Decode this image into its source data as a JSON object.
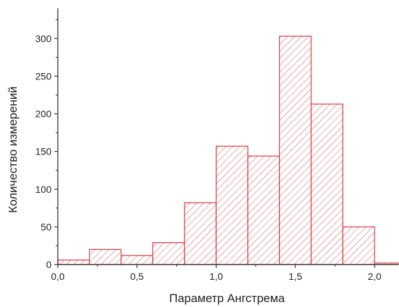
{
  "chart_data": {
    "type": "bar",
    "title": "",
    "xlabel": "Параметр Ангстрема",
    "ylabel": "Количество измерений",
    "xlim": [
      0.0,
      2.15
    ],
    "ylim": [
      0,
      340
    ],
    "bin_width": 0.2,
    "bins": [
      {
        "x0": 0.0,
        "x1": 0.2,
        "value": 6
      },
      {
        "x0": 0.2,
        "x1": 0.4,
        "value": 20
      },
      {
        "x0": 0.4,
        "x1": 0.6,
        "value": 12
      },
      {
        "x0": 0.6,
        "x1": 0.8,
        "value": 29
      },
      {
        "x0": 0.8,
        "x1": 1.0,
        "value": 82
      },
      {
        "x0": 1.0,
        "x1": 1.2,
        "value": 157
      },
      {
        "x0": 1.2,
        "x1": 1.4,
        "value": 144
      },
      {
        "x0": 1.4,
        "x1": 1.6,
        "value": 303
      },
      {
        "x0": 1.6,
        "x1": 1.8,
        "value": 213
      },
      {
        "x0": 1.8,
        "x1": 2.0,
        "value": 50
      },
      {
        "x0": 2.0,
        "x1": 2.2,
        "value": 2
      }
    ],
    "x_ticks": [
      {
        "value": 0.0,
        "label": "0,0"
      },
      {
        "value": 0.5,
        "label": "0,5"
      },
      {
        "value": 1.0,
        "label": "1,0"
      },
      {
        "value": 1.5,
        "label": "1,5"
      },
      {
        "value": 2.0,
        "label": "2,0"
      }
    ],
    "y_ticks": [
      {
        "value": 0,
        "label": "0"
      },
      {
        "value": 50,
        "label": "50"
      },
      {
        "value": 100,
        "label": "100"
      },
      {
        "value": 150,
        "label": "150"
      },
      {
        "value": 200,
        "label": "200"
      },
      {
        "value": 250,
        "label": "250"
      },
      {
        "value": 300,
        "label": "300"
      }
    ],
    "grid": false,
    "legend": "none",
    "bar_color": "#d9373f",
    "fill_pattern": "diagonal-hatch"
  }
}
